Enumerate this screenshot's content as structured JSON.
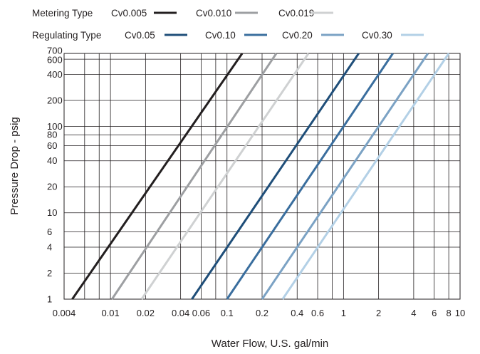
{
  "chart_data": {
    "type": "line",
    "xlabel": "Water Flow, U.S. gal/min",
    "ylabel": "Pressure Drop - psig",
    "xscale": "log",
    "yscale": "log",
    "xlim": [
      0.004,
      10
    ],
    "ylim": [
      1,
      700
    ],
    "grid": true,
    "x_tick_labels": [
      {
        "value": 0.004,
        "label": "0.004"
      },
      {
        "value": 0.01,
        "label": "0.01"
      },
      {
        "value": 0.02,
        "label": "0.02"
      },
      {
        "value": 0.04,
        "label": "0.04"
      },
      {
        "value": 0.06,
        "label": "0.06"
      },
      {
        "value": 0.1,
        "label": "0.1"
      },
      {
        "value": 0.2,
        "label": "0.2"
      },
      {
        "value": 0.4,
        "label": "0.4"
      },
      {
        "value": 0.6,
        "label": "0.6"
      },
      {
        "value": 1,
        "label": "1"
      },
      {
        "value": 2,
        "label": "2"
      },
      {
        "value": 4,
        "label": "4"
      },
      {
        "value": 6,
        "label": "6"
      },
      {
        "value": 8,
        "label": "8"
      },
      {
        "value": 10,
        "label": "10"
      }
    ],
    "x_gridlines": [
      0.004,
      0.006,
      0.008,
      0.01,
      0.02,
      0.04,
      0.06,
      0.08,
      0.1,
      0.2,
      0.4,
      0.6,
      0.8,
      1,
      2,
      4,
      6,
      8,
      10
    ],
    "y_tick_labels": [
      {
        "value": 1,
        "label": "1"
      },
      {
        "value": 2,
        "label": "2"
      },
      {
        "value": 4,
        "label": "4"
      },
      {
        "value": 6,
        "label": "6"
      },
      {
        "value": 10,
        "label": "10"
      },
      {
        "value": 20,
        "label": "20"
      },
      {
        "value": 40,
        "label": "40"
      },
      {
        "value": 60,
        "label": "60"
      },
      {
        "value": 80,
        "label": "80"
      },
      {
        "value": 100,
        "label": "100"
      },
      {
        "value": 200,
        "label": "200"
      },
      {
        "value": 400,
        "label": "400"
      },
      {
        "value": 600,
        "label": "600"
      },
      {
        "value": 700,
        "label": "700"
      }
    ],
    "y_gridlines": [
      1,
      2,
      4,
      6,
      10,
      20,
      40,
      60,
      80,
      100,
      200,
      400,
      600,
      700
    ],
    "legend_groups": [
      {
        "label": "Metering Type",
        "series": [
          "Cv0.005",
          "Cv0.010",
          "Cv0.019"
        ]
      },
      {
        "label": "Regulating Type",
        "series": [
          "Cv0.05",
          "Cv0.10",
          "Cv0.20",
          "Cv0.30"
        ]
      }
    ],
    "legend_position": "top",
    "series": [
      {
        "name": "Cv0.005",
        "color": "#231f20",
        "x": [
          0.0047,
          0.135
        ],
        "y": [
          1,
          700
        ]
      },
      {
        "name": "Cv0.010",
        "color": "#9d9fa2",
        "x": [
          0.0103,
          0.265
        ],
        "y": [
          1,
          700
        ]
      },
      {
        "name": "Cv0.019",
        "color": "#cfd1d2",
        "x": [
          0.0185,
          0.5
        ],
        "y": [
          1,
          700
        ]
      },
      {
        "name": "Cv0.05",
        "color": "#1f4e79",
        "x": [
          0.05,
          1.35
        ],
        "y": [
          1,
          700
        ]
      },
      {
        "name": "Cv0.10",
        "color": "#3a6e9e",
        "x": [
          0.1,
          2.65
        ],
        "y": [
          1,
          700
        ]
      },
      {
        "name": "Cv0.20",
        "color": "#7ba2c4",
        "x": [
          0.2,
          5.3
        ],
        "y": [
          1,
          700
        ]
      },
      {
        "name": "Cv0.30",
        "color": "#b3d0e6",
        "x": [
          0.3,
          8.0
        ],
        "y": [
          1,
          700
        ]
      }
    ]
  }
}
